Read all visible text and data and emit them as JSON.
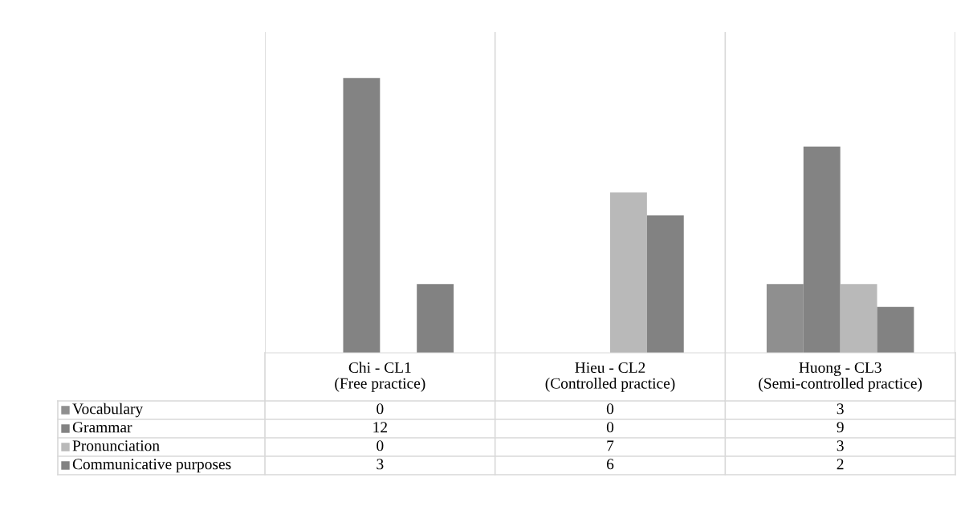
{
  "chart_data": {
    "type": "bar",
    "categories": [
      "Chi - CL1\n(Free practice)",
      "Hieu - CL2\n(Controlled practice)",
      "Huong - CL3\n(Semi-controlled practice)"
    ],
    "series": [
      {
        "name": "Vocabulary",
        "color": "#8f8f8f",
        "values": [
          0,
          0,
          3
        ]
      },
      {
        "name": "Grammar",
        "color": "#838383",
        "values": [
          12,
          0,
          9
        ]
      },
      {
        "name": "Pronunciation",
        "color": "#b9b9b9",
        "values": [
          0,
          7,
          3
        ]
      },
      {
        "name": "Communicative purposes",
        "color": "#828282",
        "values": [
          3,
          6,
          2
        ]
      }
    ],
    "ylim": [
      0,
      14
    ],
    "legend": "bottom left",
    "data_labels": true,
    "grid": "x"
  }
}
